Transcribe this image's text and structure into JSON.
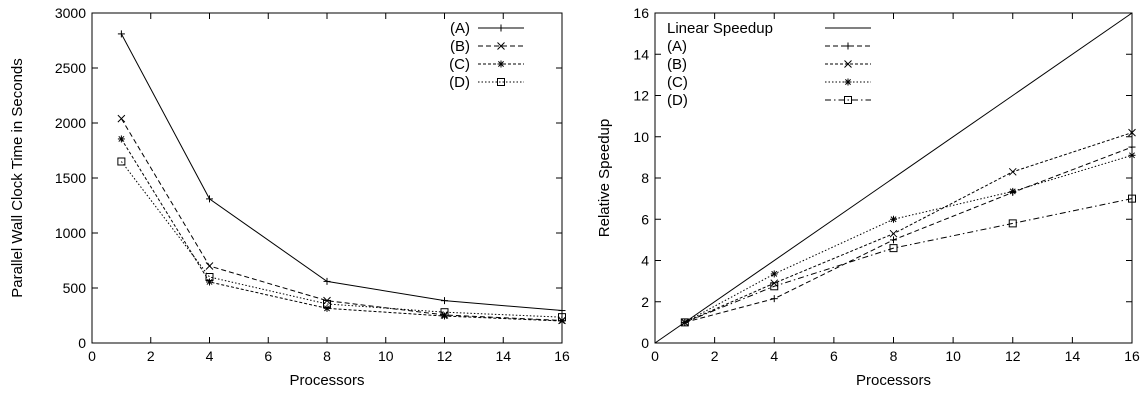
{
  "chart_data": [
    {
      "type": "line",
      "title": "",
      "xlabel": "Processors",
      "ylabel": "Parallel Wall Clock Time in Seconds",
      "xlim": [
        0,
        16
      ],
      "ylim": [
        0,
        3000
      ],
      "xticks": [
        0,
        2,
        4,
        6,
        8,
        10,
        12,
        14,
        16
      ],
      "yticks": [
        0,
        500,
        1000,
        1500,
        2000,
        2500,
        3000
      ],
      "grid": false,
      "legend_position": "top-right",
      "x": [
        1,
        4,
        8,
        12,
        16
      ],
      "series": [
        {
          "name": "(A)",
          "values": [
            2810,
            1310,
            560,
            385,
            295
          ],
          "marker": "plus",
          "dash": "solid"
        },
        {
          "name": "(B)",
          "values": [
            2040,
            700,
            385,
            255,
            205
          ],
          "marker": "cross",
          "dash": "dashed"
        },
        {
          "name": "(C)",
          "values": [
            1855,
            555,
            315,
            245,
            200
          ],
          "marker": "star",
          "dash": "dotted"
        },
        {
          "name": "(D)",
          "values": [
            1650,
            600,
            355,
            280,
            235
          ],
          "marker": "square",
          "dash": "dotted-fine"
        }
      ]
    },
    {
      "type": "line",
      "title": "",
      "xlabel": "Processors",
      "ylabel": "Relative Speedup",
      "xlim": [
        0,
        16
      ],
      "ylim": [
        0,
        16
      ],
      "xticks": [
        0,
        2,
        4,
        6,
        8,
        10,
        12,
        14,
        16
      ],
      "yticks": [
        0,
        2,
        4,
        6,
        8,
        10,
        12,
        14,
        16
      ],
      "grid": false,
      "legend_position": "top-left",
      "x": [
        1,
        4,
        8,
        12,
        16
      ],
      "series": [
        {
          "name": "Linear Speedup",
          "x": [
            0,
            16
          ],
          "values": [
            0,
            16
          ],
          "marker": "none",
          "dash": "solid"
        },
        {
          "name": "(A)",
          "values": [
            1,
            2.15,
            5.0,
            7.3,
            9.5
          ],
          "marker": "plus",
          "dash": "dashed"
        },
        {
          "name": "(B)",
          "values": [
            1,
            2.9,
            5.3,
            8.3,
            10.2
          ],
          "marker": "cross",
          "dash": "dotted"
        },
        {
          "name": "(C)",
          "values": [
            1,
            3.35,
            6.0,
            7.35,
            9.1
          ],
          "marker": "star",
          "dash": "dotted-fine"
        },
        {
          "name": "(D)",
          "values": [
            1,
            2.75,
            4.6,
            5.8,
            7.0
          ],
          "marker": "square",
          "dash": "dashdot"
        }
      ]
    }
  ]
}
